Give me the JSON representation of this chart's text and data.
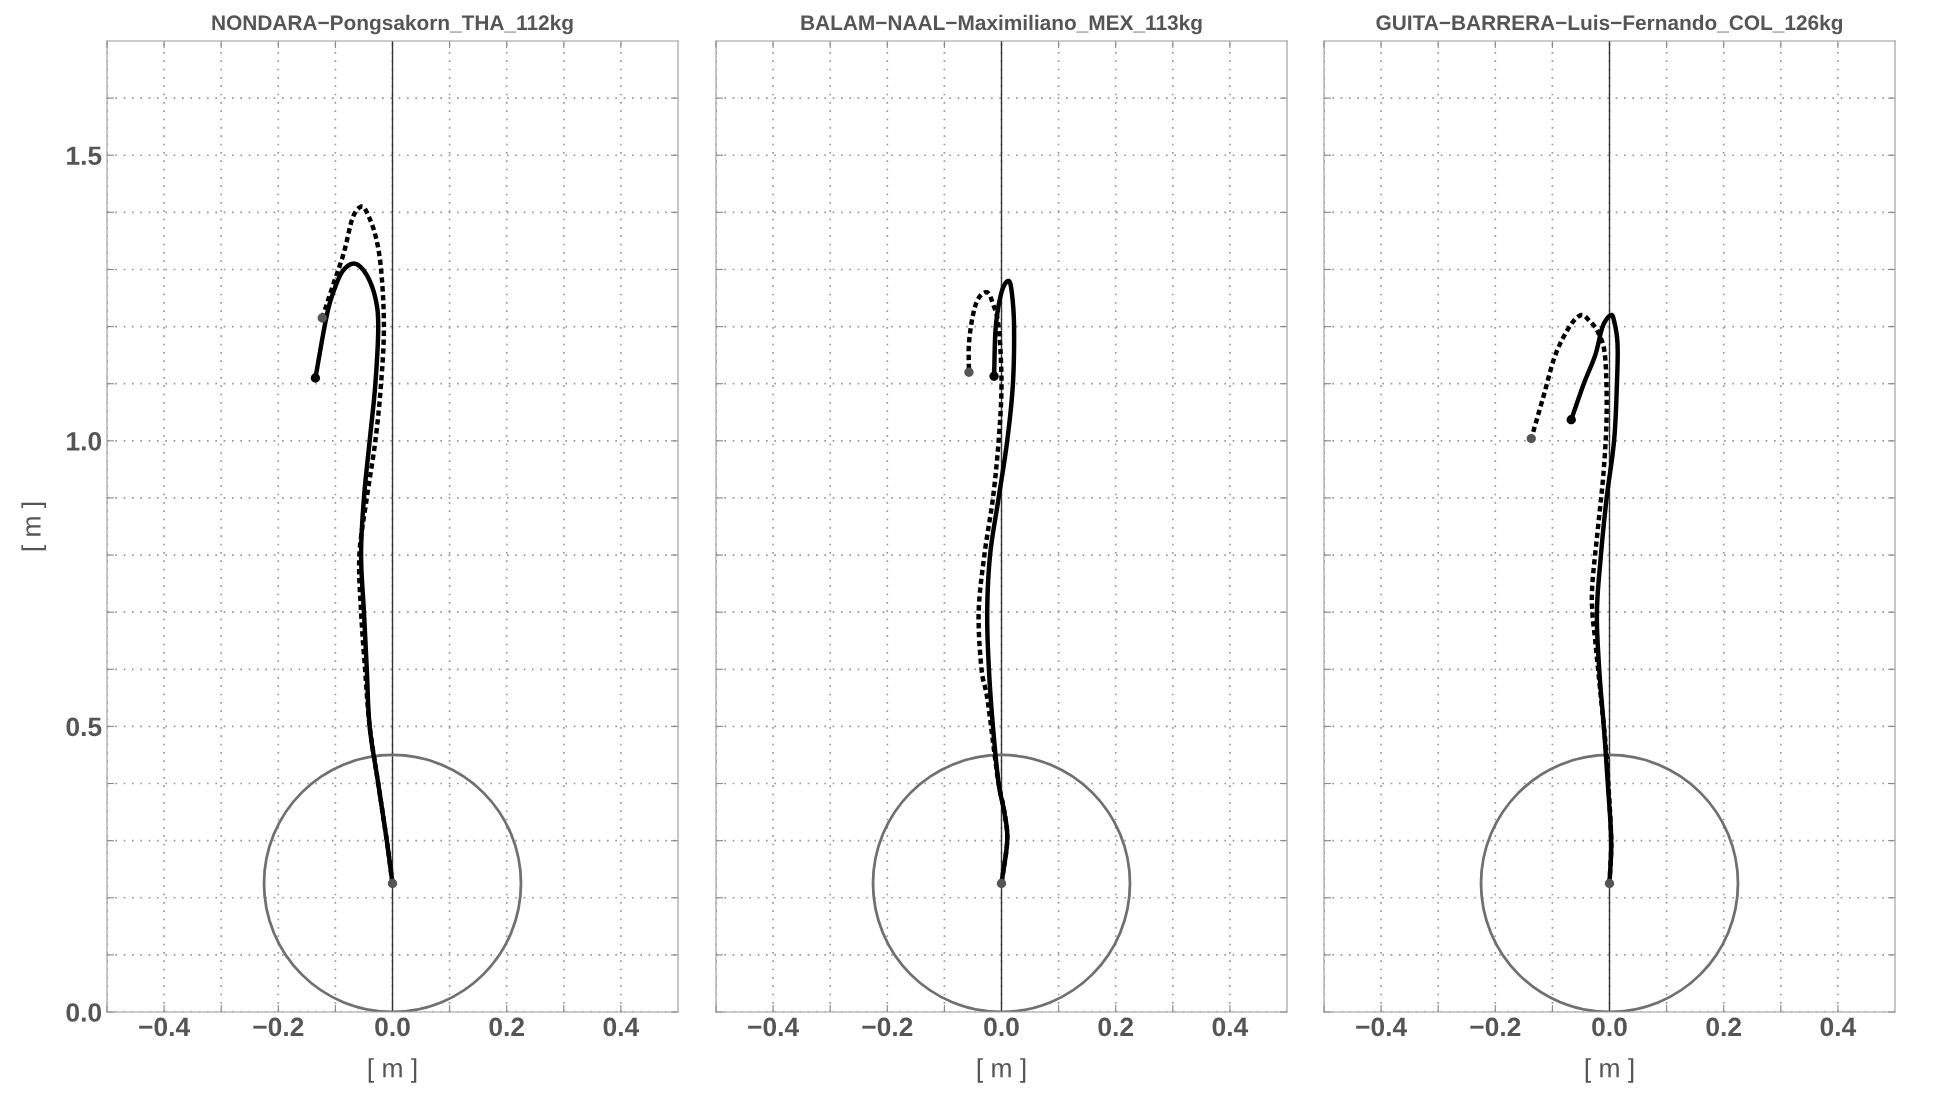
{
  "chart_data": [
    {
      "type": "line",
      "title": "NONDARA−Pongsakorn_THA_112kg",
      "xlabel": "[ m ]",
      "ylabel": "[ m ]",
      "xlim": [
        -0.5,
        0.5
      ],
      "ylim": [
        0,
        1.7
      ],
      "xticks": [
        {
          "value": -0.5,
          "label": null
        },
        {
          "value": -0.4,
          "label": "−0.4"
        },
        {
          "value": -0.3,
          "label": null
        },
        {
          "value": -0.2,
          "label": "−0.2"
        },
        {
          "value": -0.1,
          "label": null
        },
        {
          "value": 0.0,
          "label": "0.0"
        },
        {
          "value": 0.1,
          "label": null
        },
        {
          "value": 0.2,
          "label": "0.2"
        },
        {
          "value": 0.3,
          "label": null
        },
        {
          "value": 0.4,
          "label": "0.4"
        }
      ],
      "yticks": [
        {
          "value": 0.0,
          "label": "0.0"
        },
        {
          "value": 0.1,
          "label": null
        },
        {
          "value": 0.2,
          "label": null
        },
        {
          "value": 0.3,
          "label": null
        },
        {
          "value": 0.4,
          "label": null
        },
        {
          "value": 0.5,
          "label": "0.5"
        },
        {
          "value": 0.6,
          "label": null
        },
        {
          "value": 0.7,
          "label": null
        },
        {
          "value": 0.8,
          "label": null
        },
        {
          "value": 0.9,
          "label": null
        },
        {
          "value": 1.0,
          "label": "1.0"
        },
        {
          "value": 1.1,
          "label": null
        },
        {
          "value": 1.2,
          "label": null
        },
        {
          "value": 1.3,
          "label": null
        },
        {
          "value": 1.4,
          "label": null
        },
        {
          "value": 1.5,
          "label": "1.5"
        },
        {
          "value": 1.6,
          "label": null
        }
      ],
      "grid": true,
      "ref_lines": [
        {
          "axis": "x",
          "value": 0,
          "color": "#333333"
        }
      ],
      "series": [
        {
          "type": "line",
          "color": "#000000",
          "line_style": "dotted",
          "x": [
            0.0,
            -0.01,
            -0.025,
            -0.04,
            -0.048,
            -0.055,
            -0.058,
            -0.045,
            -0.03,
            -0.02,
            -0.015,
            -0.02,
            -0.03,
            -0.045,
            -0.055,
            -0.07,
            -0.085,
            -0.105,
            -0.123
          ],
          "values": [
            0.225,
            0.3,
            0.4,
            0.5,
            0.6,
            0.7,
            0.8,
            0.9,
            1.0,
            1.1,
            1.2,
            1.3,
            1.36,
            1.4,
            1.41,
            1.39,
            1.33,
            1.27,
            1.215
          ]
        },
        {
          "type": "line",
          "color": "#000000",
          "line_style": "solid",
          "x": [
            0.0,
            -0.01,
            -0.025,
            -0.04,
            -0.045,
            -0.05,
            -0.055,
            -0.05,
            -0.04,
            -0.03,
            -0.025,
            -0.03,
            -0.045,
            -0.065,
            -0.085,
            -0.1,
            -0.115,
            -0.135
          ],
          "values": [
            0.225,
            0.3,
            0.4,
            0.5,
            0.6,
            0.7,
            0.8,
            0.9,
            1.0,
            1.1,
            1.2,
            1.25,
            1.29,
            1.31,
            1.3,
            1.27,
            1.22,
            1.11
          ]
        },
        {
          "type": "scatter",
          "marker": "circle",
          "x": [
            0.0,
            -0.123,
            -0.135
          ],
          "values": [
            0.225,
            1.215,
            1.11
          ],
          "colors": [
            "#555555",
            "#555555",
            "#000000"
          ]
        }
      ]
    },
    {
      "type": "line",
      "title": "BALAM−NAAL−Maximiliano_MEX_113kg",
      "xlabel": "[ m ]",
      "xlim": [
        -0.5,
        0.5
      ],
      "ylim": [
        0,
        1.7
      ],
      "tick_labels": "x",
      "xticks": [
        {
          "value": -0.5,
          "label": null
        },
        {
          "value": -0.4,
          "label": "−0.4"
        },
        {
          "value": -0.3,
          "label": null
        },
        {
          "value": -0.2,
          "label": "−0.2"
        },
        {
          "value": -0.1,
          "label": null
        },
        {
          "value": 0.0,
          "label": "0.0"
        },
        {
          "value": 0.1,
          "label": null
        },
        {
          "value": 0.2,
          "label": "0.2"
        },
        {
          "value": 0.3,
          "label": null
        },
        {
          "value": 0.4,
          "label": "0.4"
        }
      ],
      "yticks": [
        {
          "value": 0.0,
          "label": null
        },
        {
          "value": 0.1,
          "label": null
        },
        {
          "value": 0.2,
          "label": null
        },
        {
          "value": 0.3,
          "label": null
        },
        {
          "value": 0.4,
          "label": null
        },
        {
          "value": 0.5,
          "label": null
        },
        {
          "value": 0.6,
          "label": null
        },
        {
          "value": 0.7,
          "label": null
        },
        {
          "value": 0.8,
          "label": null
        },
        {
          "value": 0.9,
          "label": null
        },
        {
          "value": 1.0,
          "label": null
        },
        {
          "value": 1.1,
          "label": null
        },
        {
          "value": 1.2,
          "label": null
        },
        {
          "value": 1.3,
          "label": null
        },
        {
          "value": 1.4,
          "label": null
        },
        {
          "value": 1.5,
          "label": null
        },
        {
          "value": 1.6,
          "label": null
        }
      ],
      "grid": true,
      "ref_lines": [
        {
          "axis": "x",
          "value": 0,
          "color": "#333333"
        }
      ],
      "series": [
        {
          "type": "line",
          "color": "#000000",
          "line_style": "dotted",
          "x": [
            0.0,
            0.01,
            0.005,
            -0.005,
            -0.012,
            -0.025,
            -0.035,
            -0.04,
            -0.03,
            -0.015,
            -0.005,
            0.0,
            -0.005,
            -0.015,
            -0.025,
            -0.04,
            -0.05,
            -0.057,
            -0.057
          ],
          "values": [
            0.225,
            0.3,
            0.35,
            0.4,
            0.45,
            0.55,
            0.6,
            0.7,
            0.8,
            0.9,
            1.0,
            1.1,
            1.2,
            1.24,
            1.26,
            1.25,
            1.22,
            1.17,
            1.12
          ]
        },
        {
          "type": "line",
          "color": "#000000",
          "line_style": "solid",
          "x": [
            0.0,
            0.01,
            0.005,
            -0.005,
            -0.015,
            -0.022,
            -0.025,
            -0.02,
            -0.005,
            0.01,
            0.02,
            0.022,
            0.018,
            0.012,
            0.0,
            -0.01,
            -0.013
          ],
          "values": [
            0.225,
            0.3,
            0.35,
            0.4,
            0.5,
            0.6,
            0.7,
            0.8,
            0.9,
            1.0,
            1.1,
            1.2,
            1.26,
            1.28,
            1.26,
            1.2,
            1.113
          ]
        },
        {
          "type": "scatter",
          "marker": "circle",
          "x": [
            0.0,
            -0.057,
            -0.013
          ],
          "values": [
            0.225,
            1.12,
            1.113
          ],
          "colors": [
            "#555555",
            "#555555",
            "#000000"
          ]
        }
      ]
    },
    {
      "type": "line",
      "title": "GUITA−BARRERA−Luis−Fernando_COL_126kg",
      "xlabel": "[ m ]",
      "xlim": [
        -0.5,
        0.5
      ],
      "ylim": [
        0,
        1.7
      ],
      "tick_labels": "x",
      "xticks": [
        {
          "value": -0.5,
          "label": null
        },
        {
          "value": -0.4,
          "label": "−0.4"
        },
        {
          "value": -0.3,
          "label": null
        },
        {
          "value": -0.2,
          "label": "−0.2"
        },
        {
          "value": -0.1,
          "label": null
        },
        {
          "value": 0.0,
          "label": "0.0"
        },
        {
          "value": 0.1,
          "label": null
        },
        {
          "value": 0.2,
          "label": "0.2"
        },
        {
          "value": 0.3,
          "label": null
        },
        {
          "value": 0.4,
          "label": "0.4"
        }
      ],
      "yticks": [
        {
          "value": 0.0,
          "label": null
        },
        {
          "value": 0.1,
          "label": null
        },
        {
          "value": 0.2,
          "label": null
        },
        {
          "value": 0.3,
          "label": null
        },
        {
          "value": 0.4,
          "label": null
        },
        {
          "value": 0.5,
          "label": null
        },
        {
          "value": 0.6,
          "label": null
        },
        {
          "value": 0.7,
          "label": null
        },
        {
          "value": 0.8,
          "label": null
        },
        {
          "value": 0.9,
          "label": null
        },
        {
          "value": 1.0,
          "label": null
        },
        {
          "value": 1.1,
          "label": null
        },
        {
          "value": 1.2,
          "label": null
        },
        {
          "value": 1.3,
          "label": null
        },
        {
          "value": 1.4,
          "label": null
        },
        {
          "value": 1.5,
          "label": null
        },
        {
          "value": 1.6,
          "label": null
        }
      ],
      "grid": true,
      "ref_lines": [
        {
          "axis": "x",
          "value": 0,
          "color": "#333333"
        }
      ],
      "series": [
        {
          "type": "line",
          "color": "#000000",
          "line_style": "dotted",
          "x": [
            0.0,
            0.003,
            -0.002,
            -0.005,
            -0.015,
            -0.025,
            -0.03,
            -0.03,
            -0.02,
            -0.01,
            -0.005,
            -0.008,
            -0.02,
            -0.035,
            -0.05,
            -0.07,
            -0.095,
            -0.115,
            -0.137
          ],
          "values": [
            0.225,
            0.3,
            0.4,
            0.45,
            0.55,
            0.65,
            0.7,
            0.75,
            0.85,
            0.95,
            1.05,
            1.15,
            1.19,
            1.21,
            1.22,
            1.2,
            1.15,
            1.08,
            1.004
          ]
        },
        {
          "type": "line",
          "color": "#000000",
          "line_style": "solid",
          "x": [
            0.0,
            0.003,
            -0.003,
            -0.01,
            -0.018,
            -0.022,
            -0.015,
            -0.005,
            0.008,
            0.013,
            0.014,
            0.008,
            0.002,
            -0.012,
            -0.025,
            -0.045,
            -0.067
          ],
          "values": [
            0.225,
            0.3,
            0.4,
            0.5,
            0.6,
            0.7,
            0.8,
            0.9,
            1.0,
            1.1,
            1.17,
            1.21,
            1.22,
            1.2,
            1.15,
            1.1,
            1.037
          ]
        },
        {
          "type": "scatter",
          "marker": "circle",
          "x": [
            0.0,
            -0.137,
            -0.067
          ],
          "values": [
            0.225,
            1.004,
            1.037
          ],
          "colors": [
            "#555555",
            "#555555",
            "#000000"
          ]
        }
      ]
    }
  ]
}
